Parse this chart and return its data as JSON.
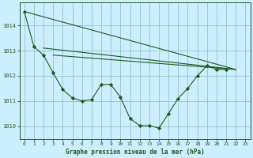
{
  "background_color": "#cceeff",
  "grid_color": "#99cccc",
  "line_color": "#1a5c1a",
  "marker_color": "#1a5c1a",
  "title": "Graphe pression niveau de la mer (hPa)",
  "title_color": "#1a5c1a",
  "ylim": [
    1009.5,
    1014.9
  ],
  "yticks": [
    1010,
    1011,
    1012,
    1013,
    1014
  ],
  "xlim": [
    -0.5,
    23.5
  ],
  "xticks": [
    0,
    1,
    2,
    3,
    4,
    5,
    6,
    7,
    8,
    9,
    10,
    11,
    12,
    13,
    14,
    15,
    16,
    17,
    18,
    19,
    20,
    21,
    22,
    23
  ],
  "series_flat1": {
    "x": [
      0,
      22
    ],
    "y": [
      1014.55,
      1012.25
    ]
  },
  "series_flat2": {
    "x": [
      2,
      22
    ],
    "y": [
      1013.1,
      1012.25
    ]
  },
  "series_flat3": {
    "x": [
      3,
      22
    ],
    "y": [
      1012.82,
      1012.25
    ]
  },
  "series_main": {
    "x": [
      0,
      1,
      2,
      3,
      4,
      5,
      6,
      7,
      8,
      9,
      10,
      11,
      12,
      13,
      14,
      15,
      16,
      17,
      18,
      19,
      20,
      21,
      22
    ],
    "y": [
      1014.55,
      1013.15,
      1012.82,
      1012.12,
      1011.45,
      1011.12,
      1011.0,
      1011.05,
      1011.65,
      1011.65,
      1011.15,
      1010.3,
      1010.02,
      1010.02,
      1009.92,
      1010.5,
      1011.1,
      1011.5,
      1012.0,
      1012.4,
      1012.25,
      null,
      null
    ]
  },
  "series_zigzag": {
    "x": [
      0,
      1,
      2,
      3,
      4,
      5,
      6,
      7,
      8,
      9,
      10,
      11,
      12,
      13,
      14,
      15,
      16,
      17,
      18,
      19,
      20,
      21,
      22
    ],
    "y": [
      1014.55,
      1013.15,
      1012.82,
      1012.12,
      1011.45,
      1011.12,
      1011.0,
      1011.05,
      1011.65,
      1011.65,
      1011.15,
      1010.3,
      1010.02,
      1010.02,
      1009.92,
      1010.5,
      1011.1,
      1011.5,
      1012.0,
      1012.4,
      1012.25,
      1012.25,
      null
    ]
  }
}
